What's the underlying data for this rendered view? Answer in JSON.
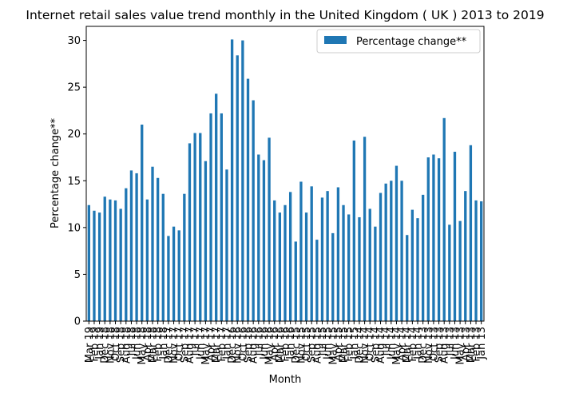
{
  "chart_data": {
    "type": "bar",
    "title": "Internet retail sales value trend monthly in the United Kingdom ( UK ) 2013 to 2019",
    "xlabel": "Month",
    "ylabel": "Percentage change**",
    "ylim": [
      0,
      31.5
    ],
    "yticks": [
      0,
      5,
      10,
      15,
      20,
      25,
      30
    ],
    "legend_position": "top-right",
    "grid": false,
    "bar_color": "#1f77b4",
    "series": [
      {
        "name": "Percentage change**",
        "values": [
          12.4,
          11.8,
          11.6,
          13.3,
          13.0,
          12.9,
          12.0,
          14.2,
          16.1,
          15.8,
          21.0,
          13.0,
          16.5,
          15.3,
          13.6,
          9.1,
          10.1,
          9.7,
          13.6,
          19.0,
          20.1,
          20.1,
          17.1,
          22.2,
          24.3,
          22.2,
          16.2,
          30.1,
          28.4,
          30.0,
          25.9,
          23.6,
          17.8,
          17.2,
          19.6,
          12.9,
          11.6,
          12.4,
          13.8,
          8.5,
          14.9,
          11.6,
          14.4,
          8.7,
          13.2,
          13.9,
          9.4,
          14.3,
          12.4,
          11.4,
          19.3,
          11.1,
          19.7,
          12.0,
          10.1,
          13.7,
          14.7,
          15.0,
          16.6,
          15.0,
          9.2,
          11.9,
          11.0,
          13.5,
          17.5,
          17.8,
          17.4,
          21.7,
          10.3,
          18.1,
          10.7,
          13.9,
          18.8,
          12.9,
          12.8
        ]
      }
    ],
    "categories": [
      "Mar 19",
      "Feb 19",
      "Jan 19",
      "Dec 18",
      "Nov 18",
      "Oct 18",
      "Sep 18",
      "Aug 18",
      "Jul 18",
      "Jun 18",
      "May 18",
      "Apr 18",
      "Mar 18",
      "Feb 18",
      "Jan 18",
      "Dec 17",
      "Nov 17",
      "Oct 17",
      "Sep 17",
      "Aug 17",
      "Jul 17",
      "Jun 17",
      "May 17",
      "Apr 17",
      "Mar 17",
      "Feb 17",
      "Jan 17",
      "Dec 16",
      "Nov 16",
      "Oct 16",
      "Sep 16",
      "Aug 16",
      "Jul 16",
      "Jun 16",
      "May 16",
      "Apr 16",
      "Mar 16",
      "Feb 16",
      "Jan 16",
      "Dec 15",
      "Nov 15",
      "Oct 15",
      "Sep 15",
      "Aug 15",
      "Jul 15",
      "Jun 15",
      "May 15",
      "Apr 15",
      "Mar 15",
      "Feb 15",
      "Jan 15",
      "Dec 14",
      "Nov 14",
      "Oct 14",
      "Sep 14",
      "Aug 14",
      "Jul 14",
      "Jun 14",
      "May 14",
      "Apr 14",
      "Mar 14",
      "Feb 14",
      "Jan 14",
      "Dec 13",
      "Nov 13",
      "Oct 13",
      "Sep 13",
      "Aug 13",
      "Jul 13",
      "Jun 13",
      "May 13",
      "Apr 13",
      "Mar 13",
      "Feb 13",
      "Jan 13"
    ]
  }
}
